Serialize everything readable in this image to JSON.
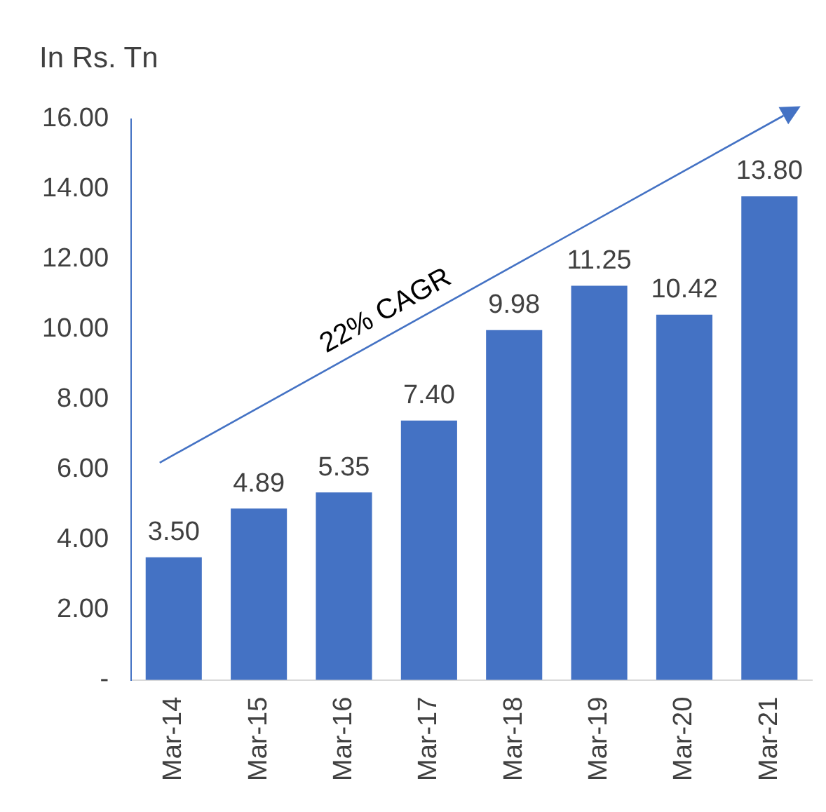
{
  "chart_data": {
    "type": "bar",
    "ylabel": "In Rs. Tn",
    "categories": [
      "Mar-14",
      "Mar-15",
      "Mar-16",
      "Mar-17",
      "Mar-18",
      "Mar-19",
      "Mar-20",
      "Mar-21"
    ],
    "values": [
      3.5,
      4.89,
      5.35,
      7.4,
      9.98,
      11.25,
      10.42,
      13.8
    ],
    "value_labels": [
      "3.50",
      "4.89",
      "5.35",
      "7.40",
      "9.98",
      "11.25",
      "10.42",
      "13.80"
    ],
    "color": "#4472c4",
    "ylim": [
      0,
      16
    ],
    "yticks": [
      {
        "value": 0,
        "label": "-"
      },
      {
        "value": 2,
        "label": "2.00"
      },
      {
        "value": 4,
        "label": "4.00"
      },
      {
        "value": 6,
        "label": "6.00"
      },
      {
        "value": 8,
        "label": "8.00"
      },
      {
        "value": 10,
        "label": "10.00"
      },
      {
        "value": 12,
        "label": "12.00"
      },
      {
        "value": 14,
        "label": "14.00"
      },
      {
        "value": 16,
        "label": "16.00"
      }
    ],
    "grid": false,
    "legend": false,
    "annotations": [
      "22% CAGR"
    ]
  }
}
